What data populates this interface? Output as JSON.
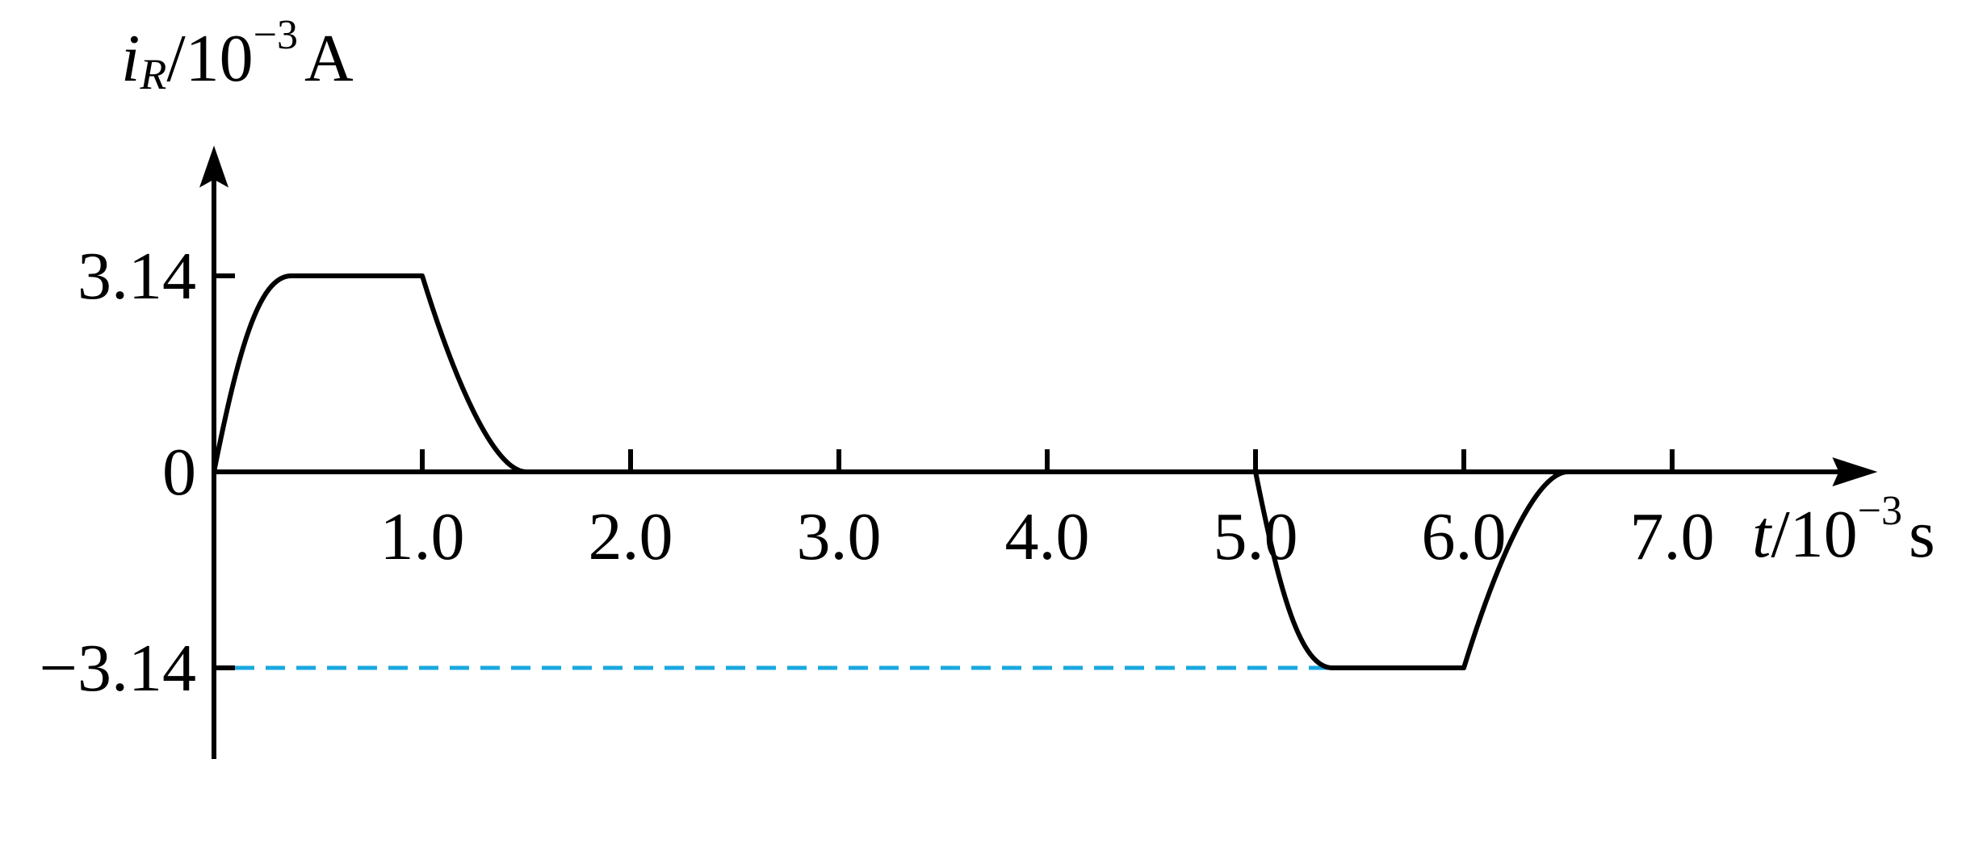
{
  "chart_data": {
    "type": "line",
    "xlabel": {
      "var": "t",
      "unit_base": "/10",
      "unit_exp": "−3",
      "unit": "s"
    },
    "ylabel": {
      "var": "i",
      "sub": "R",
      "unit_base": "/10",
      "unit_exp": "−3",
      "unit": "A"
    },
    "xlim": [
      0,
      7.8
    ],
    "ylim": [
      -4.6,
      5.2
    ],
    "x_ticks": [
      1.0,
      2.0,
      3.0,
      4.0,
      5.0,
      6.0,
      7.0
    ],
    "x_tick_labels": [
      "1.0",
      "2.0",
      "3.0",
      "4.0",
      "5.0",
      "6.0",
      "7.0"
    ],
    "y_ticks": [
      3.14,
      0,
      -3.14
    ],
    "y_tick_labels": [
      "3.14",
      "0",
      "−3.14"
    ],
    "series": [
      {
        "points": [
          [
            0,
            0
          ],
          [
            0.37,
            3.14
          ],
          [
            1.0,
            3.14
          ],
          [
            1.5,
            0
          ],
          [
            5.0,
            0
          ],
          [
            5.37,
            -3.14
          ],
          [
            6.0,
            -3.14
          ],
          [
            6.5,
            0
          ]
        ]
      }
    ],
    "reference_lines": [
      {
        "y": -3.14,
        "x_from": 0,
        "x_to": 5.37,
        "style": "dashed",
        "color": "#1aa8e0"
      }
    ],
    "colors": {
      "curve": "#000000",
      "axis": "#000000",
      "reference": "#1aa8e0"
    },
    "grid": false
  }
}
